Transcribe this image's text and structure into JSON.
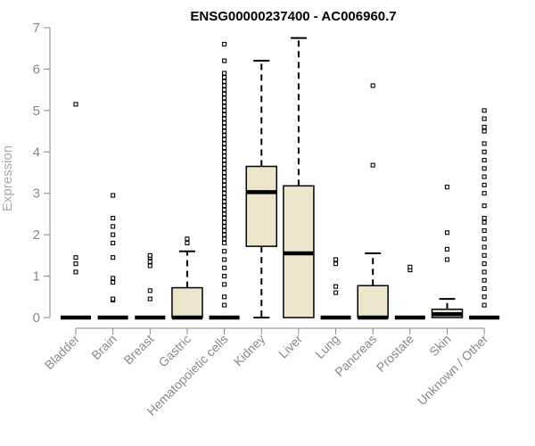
{
  "chart_data": {
    "type": "boxplot",
    "title": "ENSG00000237400 - AC006960.7",
    "ylabel": "Expression",
    "xlabel": "",
    "ylim": [
      0,
      7
    ],
    "yticks": [
      "0",
      "1",
      "2",
      "3",
      "4",
      "5",
      "6",
      "7"
    ],
    "box_fill": "#ede6cc",
    "box_stroke": "#000000",
    "grid": false,
    "legend": "none",
    "categories": [
      "Bladder",
      "Brain",
      "Breast",
      "Gastric",
      "Hematopoietic cells",
      "Kidney",
      "Liver",
      "Lung",
      "Pancreas",
      "Prostate",
      "Skin",
      "Unknown / Other"
    ],
    "boxes": [
      {
        "q1": 0,
        "median": 0,
        "q3": 0,
        "whisker_low": 0,
        "whisker_high": 0,
        "outliers": [
          1.1,
          1.3,
          1.45,
          5.15
        ]
      },
      {
        "q1": 0,
        "median": 0,
        "q3": 0,
        "whisker_low": 0,
        "whisker_high": 0,
        "outliers": [
          0.42,
          0.45,
          0.85,
          0.95,
          1.45,
          1.8,
          2.0,
          2.2,
          2.4,
          2.95
        ]
      },
      {
        "q1": 0,
        "median": 0,
        "q3": 0,
        "whisker_low": 0,
        "whisker_high": 0,
        "outliers": [
          0.45,
          0.65,
          1.25,
          1.35,
          1.45,
          1.5
        ]
      },
      {
        "q1": 0,
        "median": 0,
        "q3": 0.72,
        "whisker_low": 0,
        "whisker_high": 1.6,
        "outliers": [
          1.8,
          1.9
        ]
      },
      {
        "q1": 0,
        "median": 0,
        "q3": 0,
        "whisker_low": 0,
        "whisker_high": 0,
        "outliers": [
          0.3,
          0.5,
          0.8,
          1.0,
          1.2,
          1.4,
          1.6,
          1.8,
          1.9,
          2.0,
          2.1,
          2.2,
          2.3,
          2.4,
          2.5,
          2.6,
          2.7,
          2.8,
          2.9,
          3.0,
          3.1,
          3.2,
          3.3,
          3.4,
          3.5,
          3.6,
          3.7,
          3.8,
          3.9,
          4.0,
          4.1,
          4.2,
          4.3,
          4.4,
          4.5,
          4.6,
          4.7,
          4.8,
          4.9,
          5.0,
          5.1,
          5.2,
          5.3,
          5.4,
          5.5,
          5.6,
          5.7,
          5.8,
          5.9,
          6.2,
          6.6
        ]
      },
      {
        "q1": 1.72,
        "median": 3.03,
        "q3": 3.65,
        "whisker_low": 0,
        "whisker_high": 6.2,
        "outliers": []
      },
      {
        "q1": 0,
        "median": 1.55,
        "q3": 3.18,
        "whisker_low": 0,
        "whisker_high": 6.75,
        "outliers": []
      },
      {
        "q1": 0,
        "median": 0,
        "q3": 0,
        "whisker_low": 0,
        "whisker_high": 0,
        "outliers": [
          0.6,
          0.75,
          1.3,
          1.4
        ]
      },
      {
        "q1": 0,
        "median": 0,
        "q3": 0.77,
        "whisker_low": 0,
        "whisker_high": 1.55,
        "outliers": [
          3.68,
          5.6
        ]
      },
      {
        "q1": 0,
        "median": 0,
        "q3": 0,
        "whisker_low": 0,
        "whisker_high": 0,
        "outliers": [
          1.15,
          1.22
        ]
      },
      {
        "q1": 0,
        "median": 0.08,
        "q3": 0.2,
        "whisker_low": 0,
        "whisker_high": 0.45,
        "outliers": [
          1.4,
          1.65,
          2.05,
          3.15
        ]
      },
      {
        "q1": 0,
        "median": 0,
        "q3": 0,
        "whisker_low": 0,
        "whisker_high": 0,
        "outliers": [
          0.3,
          0.5,
          0.7,
          0.9,
          1.1,
          1.3,
          1.5,
          1.7,
          1.9,
          2.1,
          2.3,
          2.4,
          2.7,
          3.0,
          3.2,
          3.4,
          3.6,
          3.8,
          4.0,
          4.2,
          4.5,
          4.6,
          4.8,
          5.0
        ]
      }
    ]
  }
}
